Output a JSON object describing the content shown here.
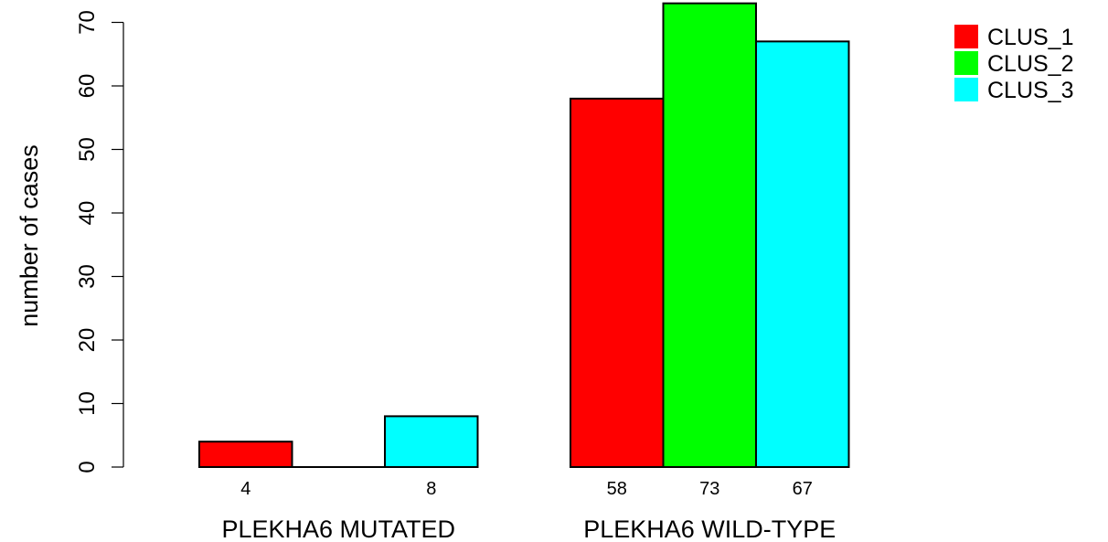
{
  "chart_data": {
    "type": "bar",
    "ylabel": "number of cases",
    "ylim": [
      0,
      74
    ],
    "yticks": [
      0,
      10,
      20,
      30,
      40,
      50,
      60,
      70
    ],
    "grid": false,
    "legend_position": "top-right",
    "groups": [
      {
        "label": "PLEKHA6 MUTATED",
        "values": [
          4,
          0,
          8
        ],
        "value_labels": [
          "4",
          "",
          "8"
        ]
      },
      {
        "label": "PLEKHA6 WILD-TYPE",
        "values": [
          58,
          73,
          67
        ],
        "value_labels": [
          "58",
          "73",
          "67"
        ]
      }
    ],
    "series": [
      {
        "name": "CLUS_1",
        "color": "#ff0000"
      },
      {
        "name": "CLUS_2",
        "color": "#00ff00"
      },
      {
        "name": "CLUS_3",
        "color": "#00ffff"
      }
    ]
  }
}
